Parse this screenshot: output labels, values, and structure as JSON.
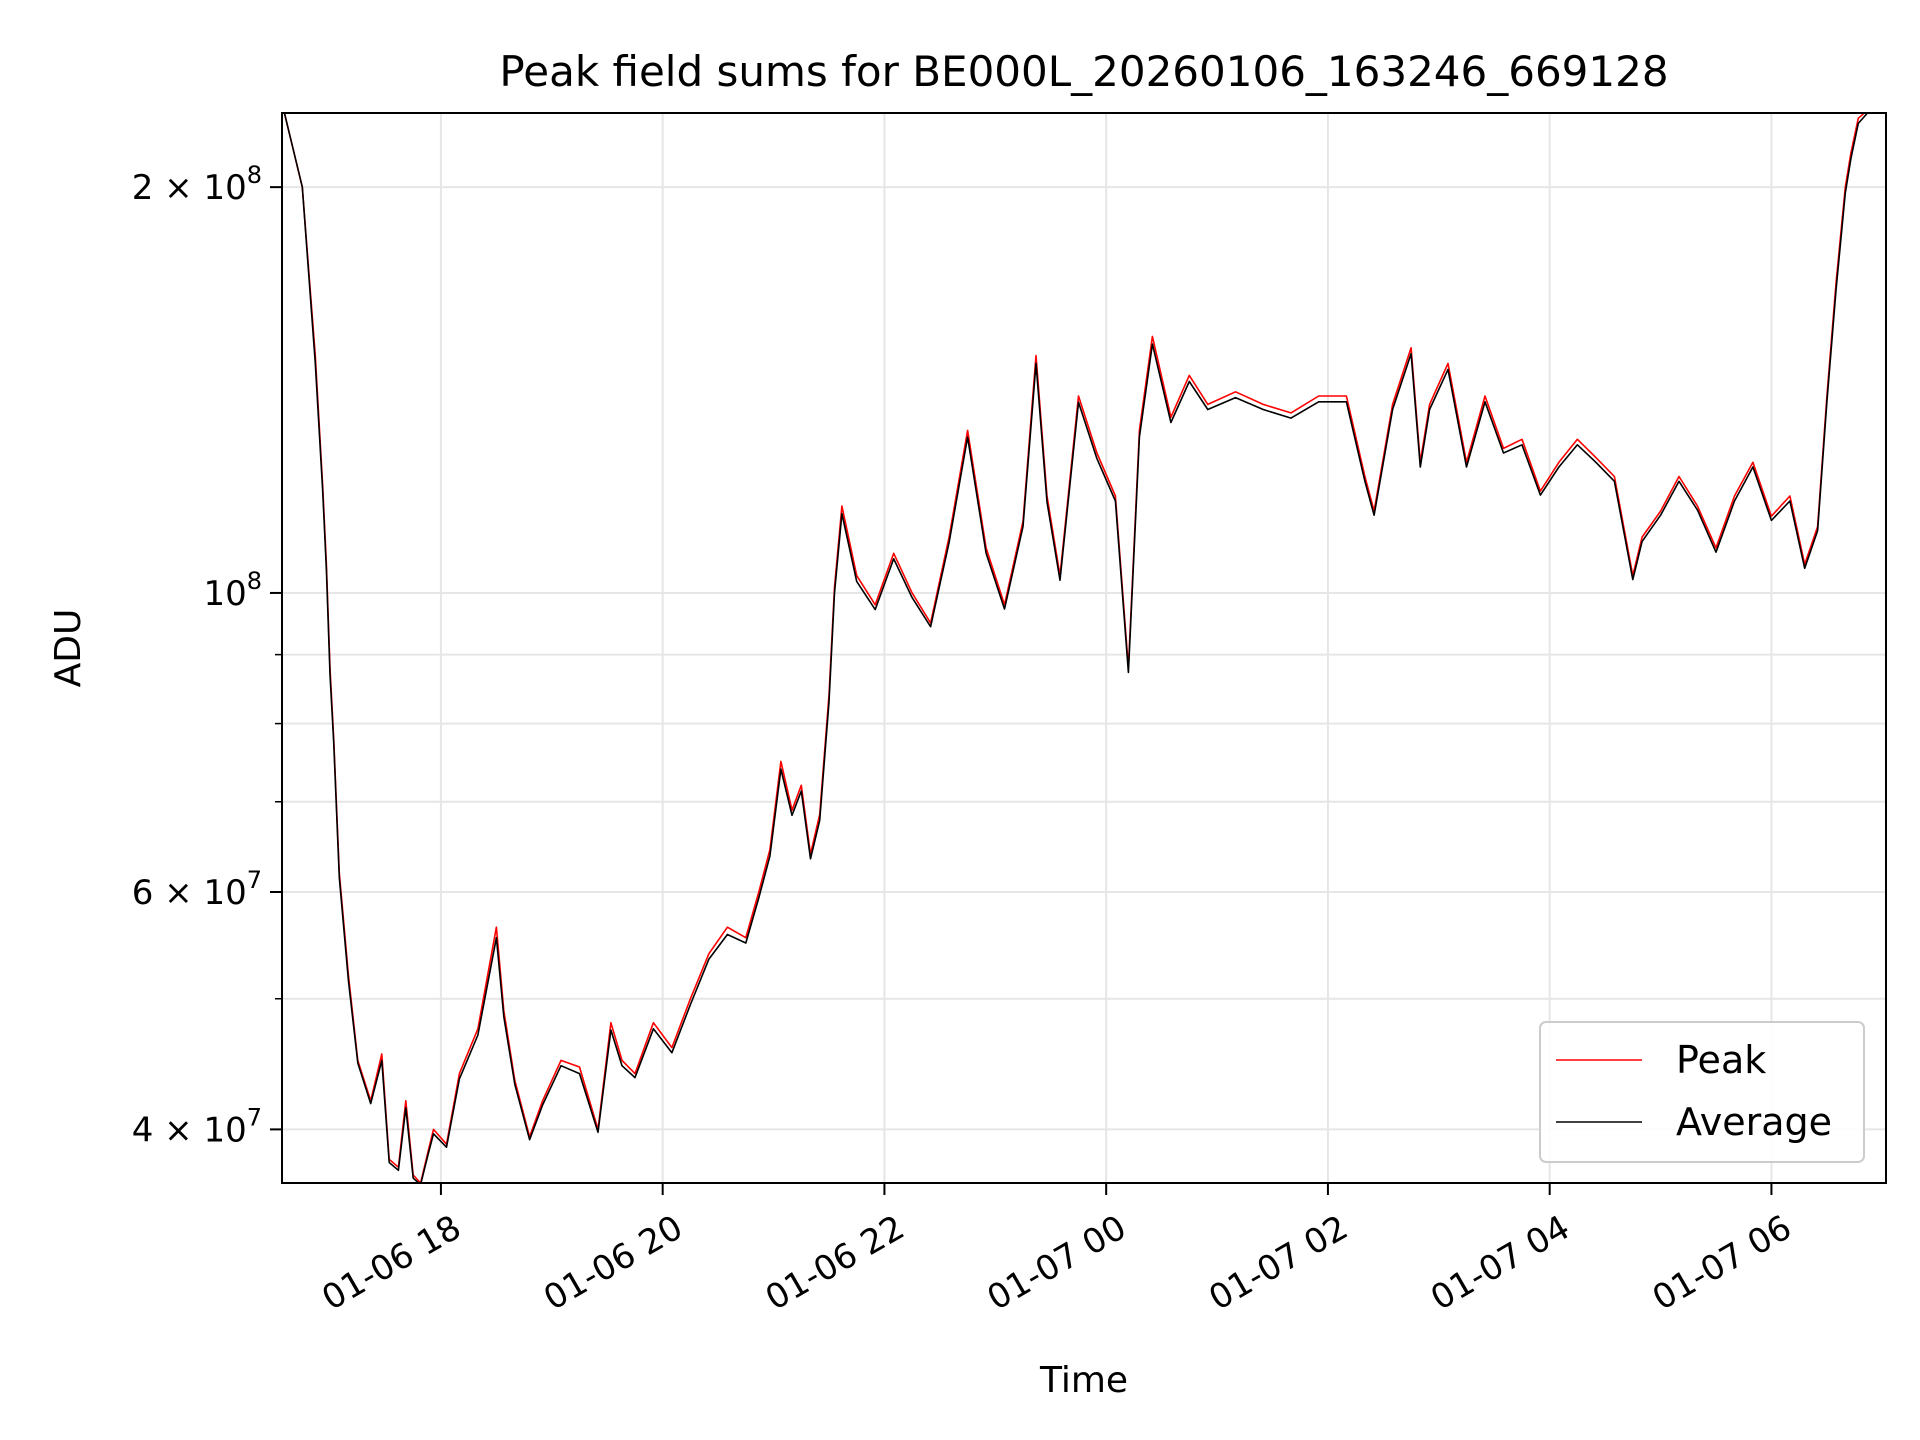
{
  "chart_data": {
    "type": "line",
    "title": "Peak field sums for BE000L_20260106_163246_669128",
    "xlabel": "Time",
    "ylabel": "ADU",
    "yscale": "log",
    "xlim": [
      "2026-01-06T16:34",
      "2026-01-07T07:02"
    ],
    "ylim": [
      36500000,
      227000000
    ],
    "grid": true,
    "legend_position": "lower-right",
    "x_ticks": [
      {
        "value": "2026-01-06T18:00",
        "label": "01-06 18"
      },
      {
        "value": "2026-01-06T20:00",
        "label": "01-06 20"
      },
      {
        "value": "2026-01-06T22:00",
        "label": "01-06 22"
      },
      {
        "value": "2026-01-07T00:00",
        "label": "01-07 00"
      },
      {
        "value": "2026-01-07T02:00",
        "label": "01-07 02"
      },
      {
        "value": "2026-01-07T04:00",
        "label": "01-07 04"
      },
      {
        "value": "2026-01-07T06:00",
        "label": "01-07 06"
      }
    ],
    "y_ticks": [
      {
        "value": 40000000,
        "mantissa": "4",
        "exponent": "7"
      },
      {
        "value": 60000000,
        "mantissa": "6",
        "exponent": "7"
      },
      {
        "value": 100000000,
        "mantissa": "",
        "exponent": "8"
      },
      {
        "value": 200000000,
        "mantissa": "2",
        "exponent": "8"
      }
    ],
    "y_minor_ticks": [
      50000000,
      70000000,
      80000000,
      90000000
    ],
    "series": [
      {
        "name": "Peak",
        "color": "#ff0000",
        "x": [
          "2026-01-06T16:35",
          "2026-01-06T16:45",
          "2026-01-06T16:52",
          "2026-01-06T16:56",
          "2026-01-06T16:58",
          "2026-01-06T17:00",
          "2026-01-06T17:02",
          "2026-01-06T17:05",
          "2026-01-06T17:10",
          "2026-01-06T17:15",
          "2026-01-06T17:22",
          "2026-01-06T17:28",
          "2026-01-06T17:32",
          "2026-01-06T17:37",
          "2026-01-06T17:41",
          "2026-01-06T17:45",
          "2026-01-06T17:49",
          "2026-01-06T17:53",
          "2026-01-06T17:56",
          "2026-01-06T18:03",
          "2026-01-06T18:10",
          "2026-01-06T18:20",
          "2026-01-06T18:30",
          "2026-01-06T18:34",
          "2026-01-06T18:40",
          "2026-01-06T18:48",
          "2026-01-06T18:55",
          "2026-01-06T19:05",
          "2026-01-06T19:15",
          "2026-01-06T19:25",
          "2026-01-06T19:32",
          "2026-01-06T19:38",
          "2026-01-06T19:45",
          "2026-01-06T19:55",
          "2026-01-06T20:05",
          "2026-01-06T20:15",
          "2026-01-06T20:25",
          "2026-01-06T20:35",
          "2026-01-06T20:45",
          "2026-01-06T20:52",
          "2026-01-06T20:58",
          "2026-01-06T21:04",
          "2026-01-06T21:10",
          "2026-01-06T21:15",
          "2026-01-06T21:20",
          "2026-01-06T21:25",
          "2026-01-06T21:30",
          "2026-01-06T21:33",
          "2026-01-06T21:37",
          "2026-01-06T21:45",
          "2026-01-06T21:55",
          "2026-01-06T22:05",
          "2026-01-06T22:15",
          "2026-01-06T22:25",
          "2026-01-06T22:35",
          "2026-01-06T22:45",
          "2026-01-06T22:55",
          "2026-01-06T23:05",
          "2026-01-06T23:15",
          "2026-01-06T23:22",
          "2026-01-06T23:28",
          "2026-01-06T23:35",
          "2026-01-06T23:45",
          "2026-01-06T23:55",
          "2026-01-07T00:05",
          "2026-01-07T00:12",
          "2026-01-07T00:18",
          "2026-01-07T00:25",
          "2026-01-07T00:35",
          "2026-01-07T00:45",
          "2026-01-07T00:55",
          "2026-01-07T01:10",
          "2026-01-07T01:25",
          "2026-01-07T01:40",
          "2026-01-07T01:55",
          "2026-01-07T02:10",
          "2026-01-07T02:20",
          "2026-01-07T02:25",
          "2026-01-07T02:35",
          "2026-01-07T02:45",
          "2026-01-07T02:50",
          "2026-01-07T02:55",
          "2026-01-07T03:05",
          "2026-01-07T03:15",
          "2026-01-07T03:25",
          "2026-01-07T03:35",
          "2026-01-07T03:45",
          "2026-01-07T03:55",
          "2026-01-07T04:05",
          "2026-01-07T04:15",
          "2026-01-07T04:25",
          "2026-01-07T04:35",
          "2026-01-07T04:45",
          "2026-01-07T04:50",
          "2026-01-07T05:00",
          "2026-01-07T05:10",
          "2026-01-07T05:20",
          "2026-01-07T05:30",
          "2026-01-07T05:40",
          "2026-01-07T05:50",
          "2026-01-07T06:00",
          "2026-01-07T06:10",
          "2026-01-07T06:18",
          "2026-01-07T06:25",
          "2026-01-07T06:30",
          "2026-01-07T06:35",
          "2026-01-07T06:40",
          "2026-01-07T06:43",
          "2026-01-07T06:47",
          "2026-01-07T06:52"
        ],
        "y": [
          228000000,
          200000000,
          150000000,
          120000000,
          105000000,
          88000000,
          78000000,
          62000000,
          52000000,
          45000000,
          42000000,
          45500000,
          38000000,
          37500000,
          42000000,
          37000000,
          36500000,
          38500000,
          40000000,
          39000000,
          44000000,
          47500000,
          56500000,
          49000000,
          43500000,
          39500000,
          42000000,
          45000000,
          44500000,
          40000000,
          48000000,
          45000000,
          44000000,
          48000000,
          46000000,
          50000000,
          54000000,
          56500000,
          55500000,
          60000000,
          64500000,
          75000000,
          69000000,
          72000000,
          64000000,
          68500000,
          84000000,
          101000000,
          116000000,
          103000000,
          98000000,
          107000000,
          100000000,
          95000000,
          110000000,
          132000000,
          108000000,
          98000000,
          113000000,
          150000000,
          118000000,
          103000000,
          140000000,
          127000000,
          118000000,
          88000000,
          132000000,
          155000000,
          135000000,
          145000000,
          138000000,
          141000000,
          138000000,
          136000000,
          140000000,
          140000000,
          122000000,
          115000000,
          138000000,
          152000000,
          125000000,
          138000000,
          148000000,
          125000000,
          140000000,
          128000000,
          130000000,
          119000000,
          125000000,
          130000000,
          126000000,
          122000000,
          103000000,
          110000000,
          115000000,
          122000000,
          116000000,
          108000000,
          118000000,
          125000000,
          114000000,
          118000000,
          105000000,
          112000000,
          140000000,
          170000000,
          200000000,
          212000000,
          225000000,
          228000000
        ]
      },
      {
        "name": "Average",
        "color": "#000000",
        "x": [
          "2026-01-06T16:35",
          "2026-01-06T16:45",
          "2026-01-06T16:52",
          "2026-01-06T16:56",
          "2026-01-06T16:58",
          "2026-01-06T17:00",
          "2026-01-06T17:02",
          "2026-01-06T17:05",
          "2026-01-06T17:10",
          "2026-01-06T17:15",
          "2026-01-06T17:22",
          "2026-01-06T17:28",
          "2026-01-06T17:32",
          "2026-01-06T17:37",
          "2026-01-06T17:41",
          "2026-01-06T17:45",
          "2026-01-06T17:49",
          "2026-01-06T17:53",
          "2026-01-06T17:56",
          "2026-01-06T18:03",
          "2026-01-06T18:10",
          "2026-01-06T18:20",
          "2026-01-06T18:30",
          "2026-01-06T18:34",
          "2026-01-06T18:40",
          "2026-01-06T18:48",
          "2026-01-06T18:55",
          "2026-01-06T19:05",
          "2026-01-06T19:15",
          "2026-01-06T19:25",
          "2026-01-06T19:32",
          "2026-01-06T19:38",
          "2026-01-06T19:45",
          "2026-01-06T19:55",
          "2026-01-06T20:05",
          "2026-01-06T20:15",
          "2026-01-06T20:25",
          "2026-01-06T20:35",
          "2026-01-06T20:45",
          "2026-01-06T20:52",
          "2026-01-06T20:58",
          "2026-01-06T21:04",
          "2026-01-06T21:10",
          "2026-01-06T21:15",
          "2026-01-06T21:20",
          "2026-01-06T21:25",
          "2026-01-06T21:30",
          "2026-01-06T21:33",
          "2026-01-06T21:37",
          "2026-01-06T21:45",
          "2026-01-06T21:55",
          "2026-01-06T22:05",
          "2026-01-06T22:15",
          "2026-01-06T22:25",
          "2026-01-06T22:35",
          "2026-01-06T22:45",
          "2026-01-06T22:55",
          "2026-01-06T23:05",
          "2026-01-06T23:15",
          "2026-01-06T23:22",
          "2026-01-06T23:28",
          "2026-01-06T23:35",
          "2026-01-06T23:45",
          "2026-01-06T23:55",
          "2026-01-07T00:05",
          "2026-01-07T00:12",
          "2026-01-07T00:18",
          "2026-01-07T00:25",
          "2026-01-07T00:35",
          "2026-01-07T00:45",
          "2026-01-07T00:55",
          "2026-01-07T01:10",
          "2026-01-07T01:25",
          "2026-01-07T01:40",
          "2026-01-07T01:55",
          "2026-01-07T02:10",
          "2026-01-07T02:20",
          "2026-01-07T02:25",
          "2026-01-07T02:35",
          "2026-01-07T02:45",
          "2026-01-07T02:50",
          "2026-01-07T02:55",
          "2026-01-07T03:05",
          "2026-01-07T03:15",
          "2026-01-07T03:25",
          "2026-01-07T03:35",
          "2026-01-07T03:45",
          "2026-01-07T03:55",
          "2026-01-07T04:05",
          "2026-01-07T04:15",
          "2026-01-07T04:25",
          "2026-01-07T04:35",
          "2026-01-07T04:45",
          "2026-01-07T04:50",
          "2026-01-07T05:00",
          "2026-01-07T05:10",
          "2026-01-07T05:20",
          "2026-01-07T05:30",
          "2026-01-07T05:40",
          "2026-01-07T05:50",
          "2026-01-07T06:00",
          "2026-01-07T06:10",
          "2026-01-07T06:18",
          "2026-01-07T06:25",
          "2026-01-07T06:30",
          "2026-01-07T06:35",
          "2026-01-07T06:40",
          "2026-01-07T06:43",
          "2026-01-07T06:47",
          "2026-01-07T06:52"
        ],
        "y": [
          228000000,
          200000000,
          148000000,
          119000000,
          104000000,
          87000000,
          77500000,
          61500000,
          51500000,
          44800000,
          41800000,
          45000000,
          37800000,
          37300000,
          41500000,
          36800000,
          36400000,
          38300000,
          39700000,
          38800000,
          43600000,
          47000000,
          55500000,
          48500000,
          43200000,
          39300000,
          41700000,
          44600000,
          44000000,
          39800000,
          47400000,
          44600000,
          43700000,
          47500000,
          45600000,
          49500000,
          53500000,
          55800000,
          55000000,
          59400000,
          63800000,
          74000000,
          68400000,
          71300000,
          63500000,
          67800000,
          83000000,
          100000000,
          114500000,
          102000000,
          97200000,
          106000000,
          99200000,
          94400000,
          109000000,
          130500000,
          107000000,
          97300000,
          112000000,
          148000000,
          116800000,
          102200000,
          138500000,
          125800000,
          117000000,
          87300000,
          130500000,
          153000000,
          133800000,
          143500000,
          136800000,
          139600000,
          136800000,
          134800000,
          138600000,
          138600000,
          121000000,
          114200000,
          136800000,
          150500000,
          124000000,
          136800000,
          146500000,
          124000000,
          138600000,
          127000000,
          128800000,
          118200000,
          124000000,
          128800000,
          125000000,
          121000000,
          102300000,
          109200000,
          114200000,
          121000000,
          115200000,
          107200000,
          117000000,
          124000000,
          113200000,
          117000000,
          104300000,
          111200000,
          138600000,
          168000000,
          198000000,
          210000000,
          223000000,
          227000000
        ]
      }
    ]
  }
}
